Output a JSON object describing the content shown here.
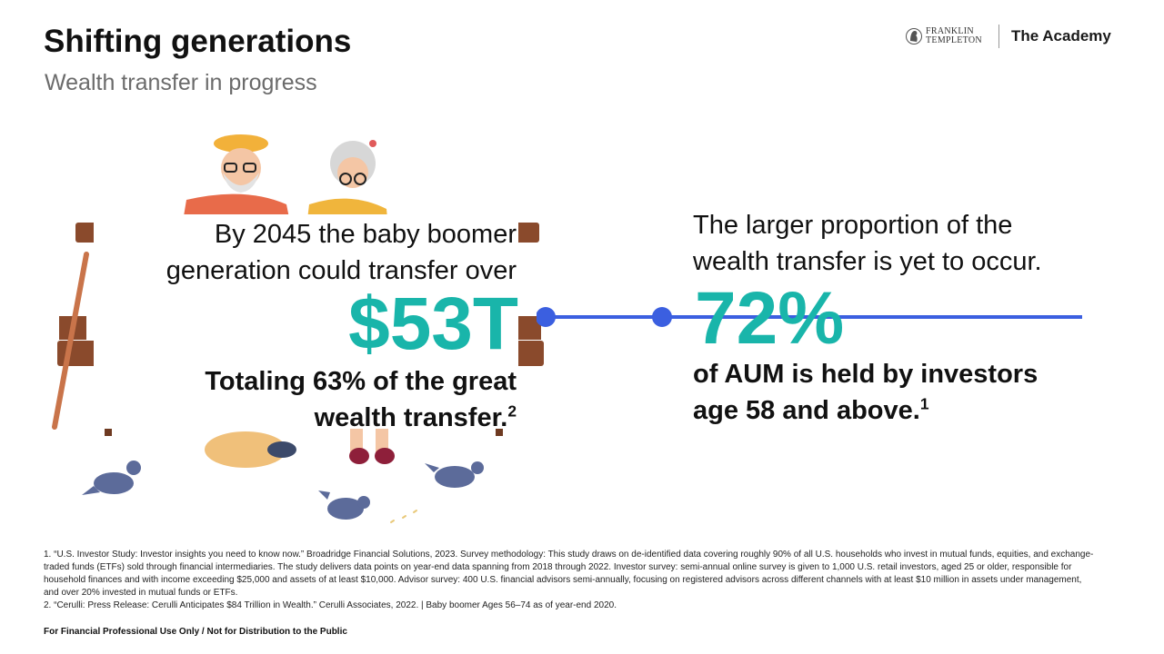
{
  "header": {
    "title": "Shifting generations",
    "subtitle": "Wealth transfer in progress"
  },
  "brand": {
    "logo_line1": "FRANKLIN",
    "logo_line2": "TEMPLETON",
    "academy": "The Academy"
  },
  "left_stat": {
    "intro_line1": "By 2045 the baby boomer",
    "intro_line2": "generation could transfer over",
    "value": "$53T",
    "detail_line1": "Totaling 63% of the great",
    "detail_line2": "wealth transfer.",
    "detail_ref": "2"
  },
  "right_stat": {
    "intro_line1": "The larger proportion of the",
    "intro_line2": "wealth transfer is yet to occur.",
    "value": "72%",
    "detail_line1": "of AUM is held by investors",
    "detail_line2": "age 58 and above.",
    "detail_ref": "1"
  },
  "footnotes": [
    "1. “U.S. Investor Study: Investor insights you need to know now.” Broadridge Financial Solutions, 2023. Survey methodology: This study draws on de-identified data covering roughly 90% of all U.S. households who invest in mutual funds, equities, and exchange-traded funds (ETFs) sold through financial intermediaries. The study delivers data points on year-end data spanning from 2018 through 2022. Investor survey: semi-annual online survey is given to 1,000 U.S. retail investors, aged 25 or older, responsible for household finances and with income exceeding $25,000 and assets of at least $10,000. Advisor survey: 400 U.S. financial advisors semi-annually, focusing on registered advisors across different channels with at least $10 million in assets under management, and over 20% invested in mutual funds or ETFs.",
    "2. “Cerulli: Press Release: Cerulli Anticipates $84 Trillion in Wealth.” Cerulli Associates, 2022. | Baby boomer Ages 56–74 as of year-end 2020."
  ],
  "disclaimer": "For Financial Professional Use Only / Not for Distribution to the Public",
  "colors": {
    "accent_teal": "#19b5aa",
    "timeline_blue": "#3b5fe0"
  }
}
